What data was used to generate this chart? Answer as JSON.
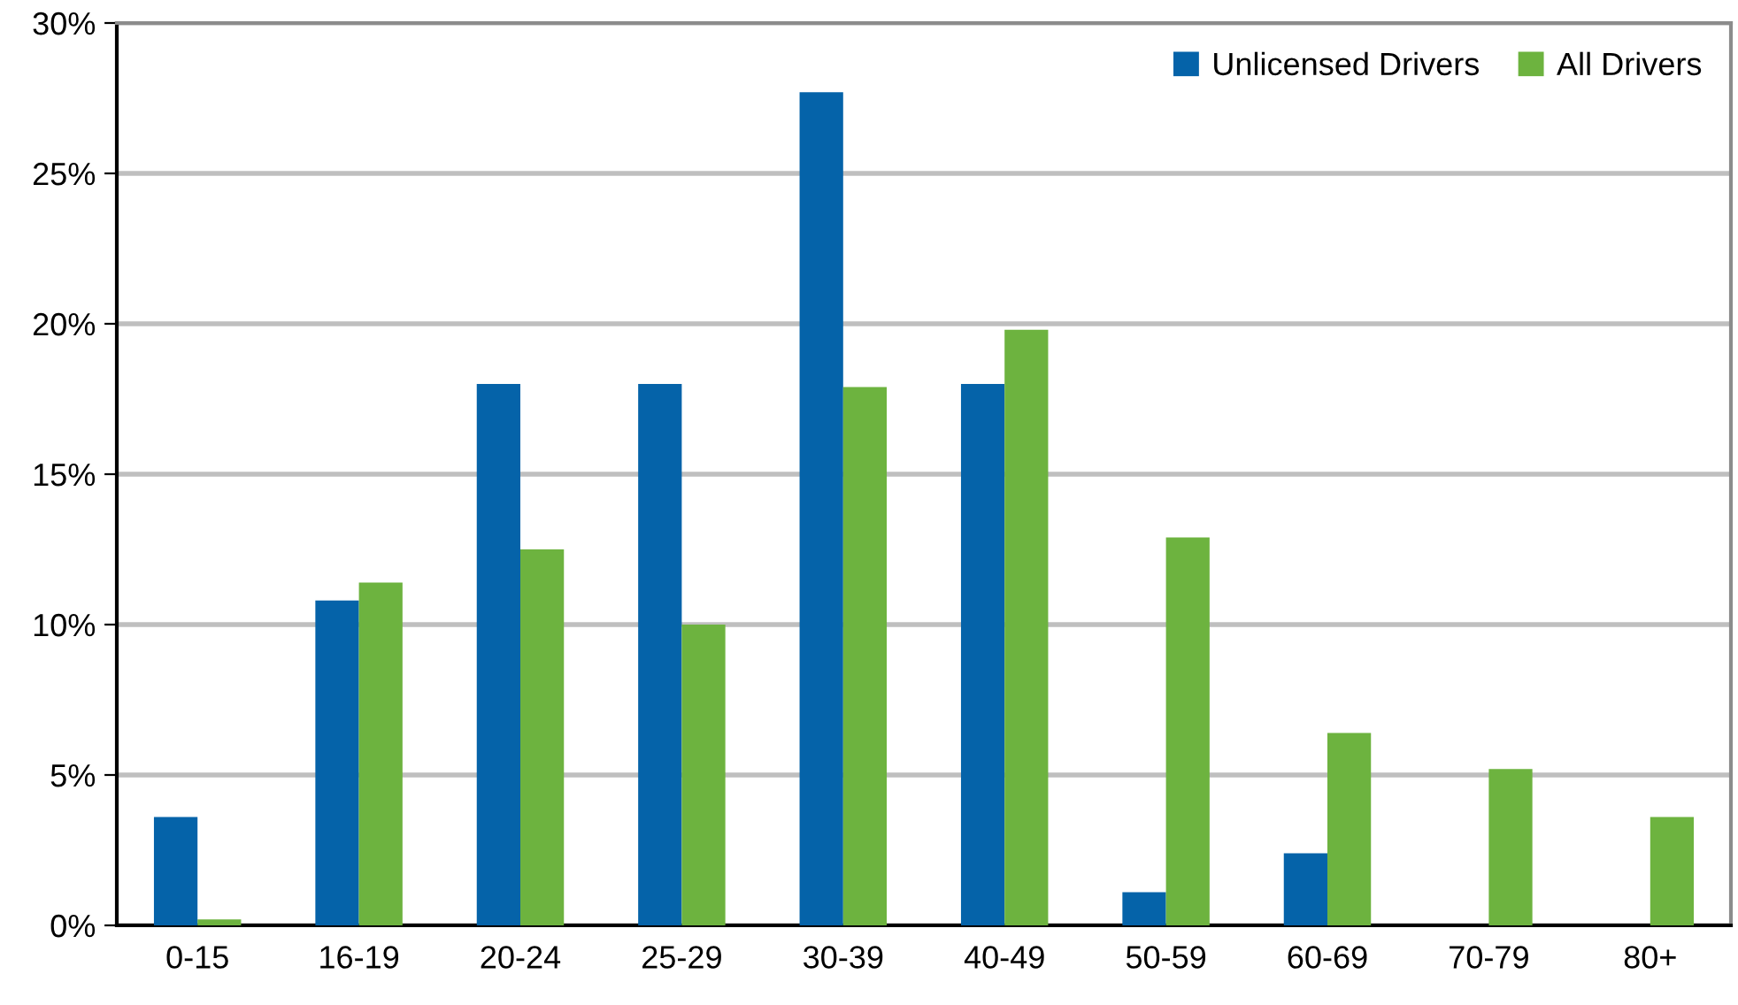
{
  "chart_data": {
    "type": "bar",
    "categories": [
      "0-15",
      "16-19",
      "20-24",
      "25-29",
      "30-39",
      "40-49",
      "50-59",
      "60-69",
      "70-79",
      "80+"
    ],
    "series": [
      {
        "name": "Unlicensed Drivers",
        "color": "#0563a9",
        "values": [
          3.6,
          10.8,
          18.0,
          18.0,
          27.7,
          18.0,
          1.1,
          2.4,
          0,
          0
        ]
      },
      {
        "name": "All Drivers",
        "color": "#6db33f",
        "values": [
          0.2,
          11.4,
          12.5,
          10.0,
          17.9,
          19.8,
          12.9,
          6.4,
          5.2,
          3.6
        ]
      }
    ],
    "ylim": [
      0,
      30
    ],
    "yticks": [
      {
        "value": 0,
        "label": "0%"
      },
      {
        "value": 5,
        "label": "5%"
      },
      {
        "value": 10,
        "label": "10%"
      },
      {
        "value": 15,
        "label": "15%"
      },
      {
        "value": 20,
        "label": "20%"
      },
      {
        "value": 25,
        "label": "25%"
      },
      {
        "value": 30,
        "label": "30%"
      }
    ],
    "grid": "y",
    "legend": "top right"
  }
}
